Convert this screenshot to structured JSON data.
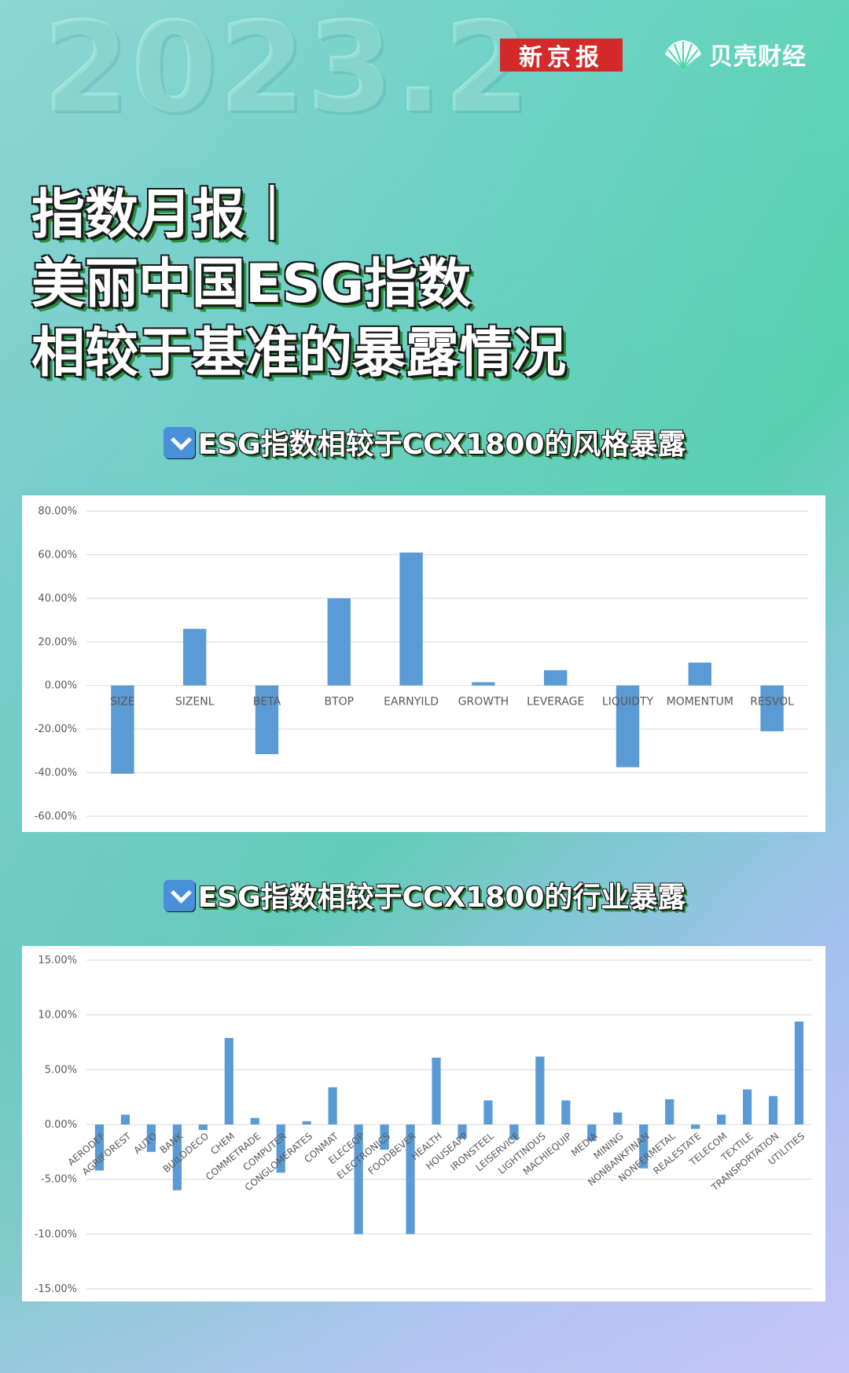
{
  "header": {
    "date_watermark": "2023.2",
    "xjb_logo_text": "新京报",
    "beike_logo_text": "贝壳财经",
    "beike_icon": "shell-logo-icon"
  },
  "headline": {
    "line1": "指数月报｜",
    "line2": "美丽中国ESG指数",
    "line3": "相较于基准的暴露情况"
  },
  "sections": {
    "style_title": "ESG指数相较于CCX1800的风格暴露",
    "industry_title": "ESG指数相较于CCX1800的行业暴露",
    "arrow_icon": "down-arrow-icon"
  },
  "colors": {
    "bar": "#5b9bd5",
    "grid": "#d9d9d9",
    "xjb_red": "#d42a2a",
    "title_shadow": "#2a8f3e"
  },
  "chart_data": [
    {
      "type": "bar",
      "title": "",
      "xlabel": "",
      "ylabel": "",
      "ylim": [
        -60,
        80
      ],
      "yticks": [
        "80.00%",
        "60.00%",
        "40.00%",
        "20.00%",
        "0.00%",
        "-20.00%",
        "-40.00%",
        "-60.00%"
      ],
      "ytick_values": [
        80,
        60,
        40,
        20,
        0,
        -20,
        -40,
        -60
      ],
      "grid": true,
      "categories": [
        "SIZE",
        "SIZENL",
        "BETA",
        "BTOP",
        "EARNYILD",
        "GROWTH",
        "LEVERAGE",
        "LIQUIDTY",
        "MOMENTUM",
        "RESVOL"
      ],
      "values": [
        -40.5,
        26,
        -31.5,
        40,
        61,
        1.5,
        7,
        -37.5,
        10.5,
        -21
      ]
    },
    {
      "type": "bar",
      "title": "",
      "xlabel": "",
      "ylabel": "",
      "ylim": [
        -15,
        15
      ],
      "yticks": [
        "15.00%",
        "10.00%",
        "5.00%",
        "0.00%",
        "-5.00%",
        "-10.00%",
        "-15.00%"
      ],
      "ytick_values": [
        15,
        10,
        5,
        0,
        -5,
        -10,
        -15
      ],
      "grid": true,
      "categories": [
        "AERODEF",
        "AGRIFOREST",
        "AUTO",
        "BANK",
        "BUILDDECO",
        "CHEM",
        "COMMETRADE",
        "COMPUTER",
        "CONGLOMERATES",
        "CONMAT",
        "ELECEQP",
        "ELECTRONICS",
        "FOODBEVER",
        "HEALTH",
        "HOUSEAPP",
        "IRONSTEEL",
        "LEISERVICE",
        "LIGHTINDUS",
        "MACHIEQUIP",
        "MEDIA",
        "MINING",
        "NONBANKFINAN",
        "NONFERMETAL",
        "REALESTATE",
        "TELECOM",
        "TEXTILE",
        "TRANSPORTATION",
        "UTILITIES"
      ],
      "values": [
        -4.2,
        0.9,
        -2.5,
        -6.0,
        -0.5,
        7.9,
        0.6,
        -4.4,
        0.3,
        3.4,
        -10.0,
        -2.3,
        -10.0,
        6.1,
        -1.3,
        2.2,
        -1.4,
        6.2,
        2.2,
        -1.5,
        1.1,
        -4.0,
        2.3,
        -0.4,
        0.9,
        3.2,
        2.6,
        9.4
      ]
    }
  ]
}
